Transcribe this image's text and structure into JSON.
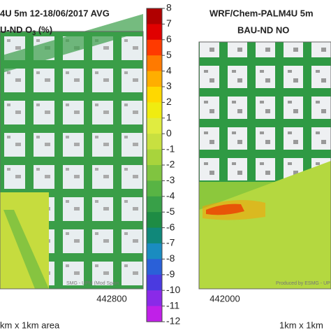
{
  "left_panel": {
    "title_line1": "4U 5m 12-18/06/2017 AVG",
    "title_line2_prefix": "U-ND O",
    "title_line2_sub": "3",
    "title_line2_suffix": " (%)",
    "x_tick": "442800",
    "area_label": "km x 1km area",
    "watermark": "SMG - UPM (Mod    Spain"
  },
  "right_panel": {
    "title_line1": "WRF/Chem-PALM4U 5m",
    "title_line2": "BAU-ND NO",
    "x_tick": "442000",
    "area_label": "1km x 1km",
    "watermark": "Produced by ESMG - UP"
  },
  "colorbar": {
    "lim": [
      -12,
      8
    ],
    "ticks": [
      8,
      7,
      6,
      5,
      4,
      3,
      2,
      1,
      0,
      -1,
      -2,
      -3,
      -4,
      -5,
      -6,
      -7,
      -8,
      -9,
      -10,
      -11,
      -12
    ],
    "colors": [
      "#b00000",
      "#e00000",
      "#ff3a00",
      "#ff7a00",
      "#ffae00",
      "#ffd800",
      "#f0ec10",
      "#e0ec40",
      "#c8e040",
      "#a8d43c",
      "#80c440",
      "#58b444",
      "#38a048",
      "#1e8c44",
      "#10887a",
      "#1a8cc0",
      "#2a60d8",
      "#4a3ae0",
      "#8a2ae8",
      "#c020e8"
    ]
  }
}
